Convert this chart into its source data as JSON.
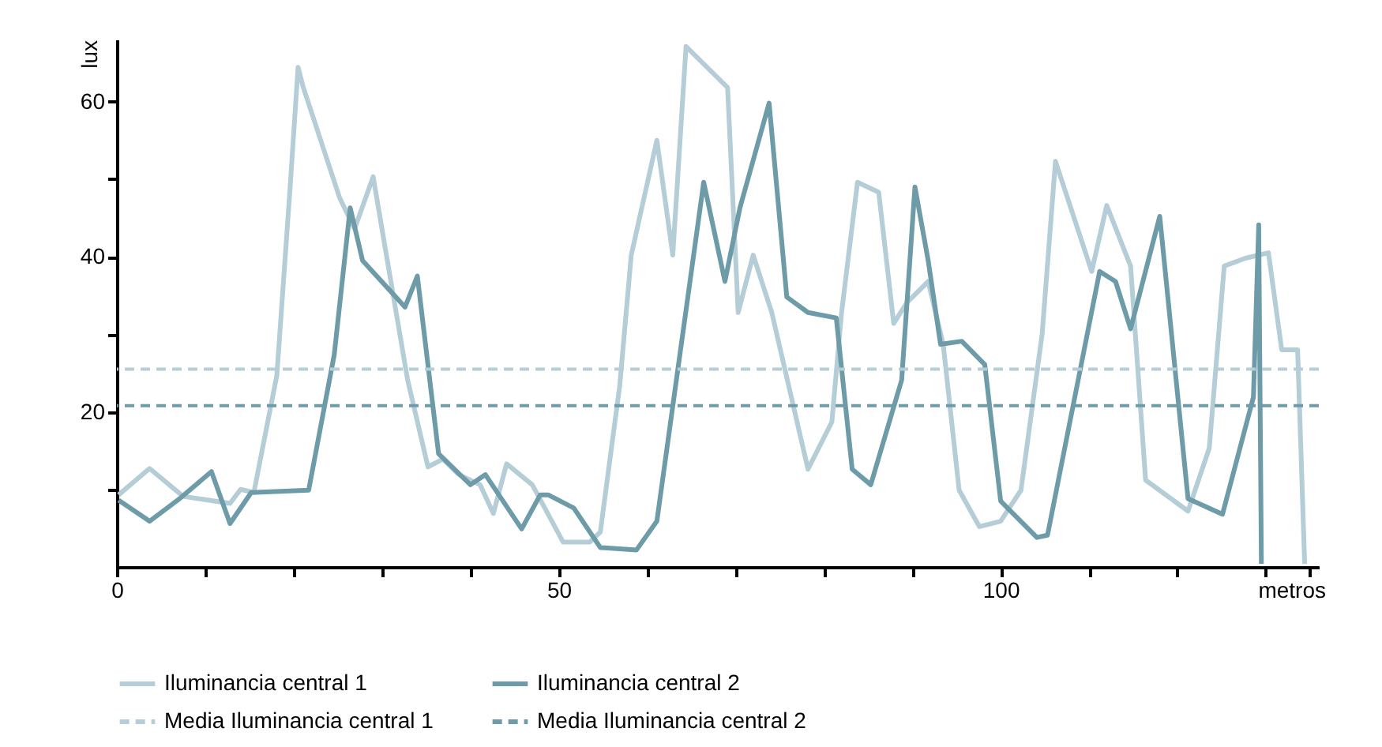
{
  "chart_data": {
    "type": "line",
    "xlabel": "metros",
    "ylabel": "lux",
    "xlim": [
      0,
      136
    ],
    "xticks": [
      0,
      {
        "value": 10,
        "label": null
      },
      {
        "value": 20,
        "label": null
      },
      {
        "value": 30,
        "label": null
      },
      {
        "value": 40,
        "label": null
      },
      50,
      {
        "value": 60,
        "label": null
      },
      {
        "value": 70,
        "label": null
      },
      {
        "value": 80,
        "label": null
      },
      {
        "value": 90,
        "label": null
      },
      100,
      {
        "value": 110,
        "label": null
      },
      {
        "value": 120,
        "label": null
      },
      {
        "value": 130,
        "label": null
      },
      {
        "value": 135,
        "label": null
      }
    ],
    "ylim": [
      0,
      68
    ],
    "yticks": [
      {
        "value": 10,
        "label": null
      },
      20,
      {
        "value": 30,
        "label": null
      },
      40,
      {
        "value": 50,
        "label": null
      },
      60
    ],
    "grid": false,
    "legend": "bottom",
    "line_style": "solid",
    "marker": "none",
    "series": [
      {
        "name": "Iluminancia central 1",
        "color": "#b4cdd6",
        "x": [
          0.2,
          3.7,
          7.5,
          12.8,
          14,
          15.5,
          18.1,
          19.6,
          20.5,
          21.1,
          25.2,
          26.9,
          29,
          30.2,
          32.9,
          35.2,
          36.9,
          38.7,
          41.1,
          42.6,
          44.1,
          47,
          50.5,
          53.5,
          54.7,
          56.9,
          58.2,
          61.1,
          62.9,
          64.4,
          69.1,
          70.3,
          72,
          74.1,
          78.2,
          80.9,
          82,
          83.8,
          86.2,
          87.9,
          89.4,
          91.8,
          93.5,
          95.3,
          97.6,
          100,
          102.3,
          104.7,
          106.2,
          110.3,
          112,
          114.7,
          116.4,
          121.2,
          123.6,
          125.3,
          127.7,
          130.3,
          131.8,
          133.6,
          134.4
        ],
        "values": [
          9.3,
          12.7,
          9.1,
          8.2,
          10,
          9.6,
          24.7,
          48.9,
          64.4,
          61.8,
          47.6,
          43.6,
          50.3,
          42.2,
          24.1,
          12.9,
          13.9,
          11.9,
          10.6,
          6.9,
          13.3,
          10.6,
          3.2,
          3.2,
          4.5,
          23.4,
          40.2,
          55,
          40.2,
          67.1,
          61.8,
          32.8,
          40.2,
          32.8,
          12.6,
          18.7,
          32.8,
          49.6,
          48.3,
          31.4,
          34.1,
          36.8,
          28.7,
          9.9,
          5.2,
          5.9,
          9.9,
          30.1,
          52.3,
          38.1,
          46.6,
          38.8,
          11.2,
          7.2,
          15.3,
          38.8,
          39.8,
          40.5,
          28,
          28,
          0.4
        ]
      },
      {
        "name": "Iluminancia central 2",
        "color": "#6d9ca8",
        "x": [
          0.2,
          3.7,
          7.2,
          10.7,
          12.8,
          15.2,
          21.7,
          24.6,
          26.4,
          27.8,
          32.6,
          34,
          36.4,
          40,
          41.7,
          45.8,
          47.9,
          48.8,
          51.7,
          54.7,
          58.8,
          61.1,
          66.4,
          68.8,
          70.5,
          73.8,
          75.8,
          78.2,
          81.4,
          83.2,
          85.3,
          88.8,
          90.3,
          91.8,
          93.2,
          95.6,
          98.2,
          100,
          104.1,
          105.3,
          111.2,
          113,
          114.7,
          118,
          121.2,
          125.1,
          128.6,
          129.2,
          129.5
        ],
        "values": [
          8.6,
          5.9,
          8.9,
          12.3,
          5.6,
          9.6,
          9.9,
          27.4,
          46.3,
          39.5,
          33.5,
          37.5,
          14.6,
          10.6,
          11.9,
          4.9,
          9.3,
          9.3,
          7.6,
          2.5,
          2.2,
          5.9,
          49.6,
          36.8,
          46.3,
          59.8,
          34.8,
          32.8,
          32.1,
          12.6,
          10.6,
          24.1,
          49,
          39.5,
          28.7,
          29.1,
          26.1,
          8.5,
          3.8,
          4.1,
          38.1,
          36.8,
          30.7,
          45.2,
          8.8,
          6.8,
          21.9,
          44.1,
          0.4
        ]
      }
    ],
    "ref_lines": [
      {
        "axis": "y",
        "value": 25.5,
        "label": "Media Iluminancia central 1",
        "color": "#b4cdd6",
        "line_style": "dashed"
      },
      {
        "axis": "y",
        "value": 20.8,
        "label": "Media Iluminancia central 2",
        "color": "#6d9ca8",
        "line_style": "dashed"
      }
    ]
  }
}
